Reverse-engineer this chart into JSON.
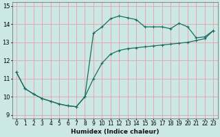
{
  "title": "",
  "xlabel": "Humidex (Indice chaleur)",
  "bg_color": "#cce8e4",
  "line_color": "#1a6b5e",
  "grid_color": "#e8a0a8",
  "xlim": [
    -0.5,
    23.5
  ],
  "ylim": [
    8.8,
    15.2
  ],
  "xticks": [
    0,
    1,
    2,
    3,
    4,
    5,
    6,
    7,
    8,
    9,
    10,
    11,
    12,
    13,
    14,
    15,
    16,
    17,
    18,
    19,
    20,
    21,
    22,
    23
  ],
  "yticks": [
    9,
    10,
    11,
    12,
    13,
    14,
    15
  ],
  "line1_x": [
    0,
    1,
    2,
    3,
    4,
    5,
    6,
    7,
    8,
    9,
    10,
    11,
    12,
    13,
    14,
    15,
    16,
    17,
    18,
    19,
    20,
    21,
    22,
    23
  ],
  "line1_y": [
    11.35,
    10.45,
    10.15,
    9.9,
    9.75,
    9.6,
    9.5,
    9.45,
    10.0,
    11.0,
    11.85,
    12.35,
    12.55,
    12.65,
    12.7,
    12.75,
    12.8,
    12.85,
    12.9,
    12.95,
    13.0,
    13.1,
    13.2,
    13.65
  ],
  "line2_x": [
    0,
    1,
    2,
    3,
    4,
    5,
    6,
    7,
    8,
    9,
    10,
    11,
    12,
    13,
    14,
    15,
    16,
    17,
    18,
    19,
    20,
    21,
    22,
    23
  ],
  "line2_y": [
    11.35,
    10.45,
    10.15,
    9.9,
    9.75,
    9.6,
    9.5,
    9.45,
    10.0,
    13.5,
    13.85,
    14.3,
    14.45,
    14.35,
    14.25,
    13.85,
    13.85,
    13.85,
    13.75,
    14.05,
    13.85,
    13.25,
    13.3,
    13.65
  ],
  "xlabel_fontsize": 6.5,
  "xlabel_fontweight": "bold",
  "tick_fontsize": 5.5,
  "ytick_fontsize": 6.0,
  "marker_size": 3,
  "line_width": 0.9
}
